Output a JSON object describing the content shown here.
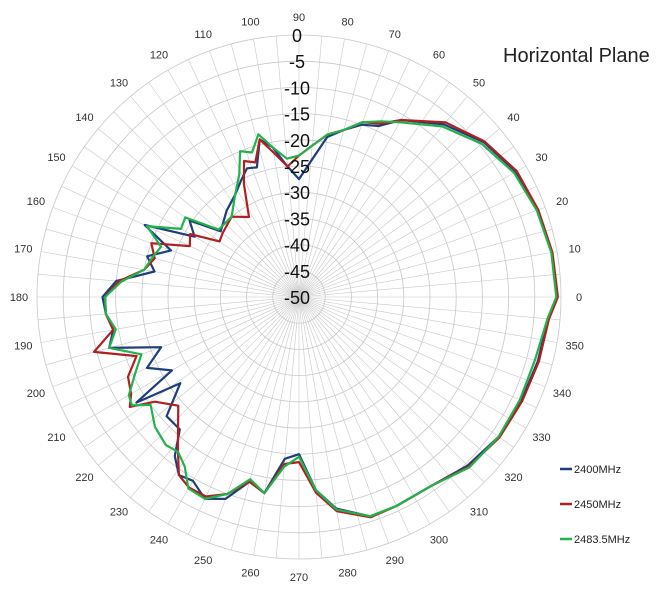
{
  "chart_data": {
    "type": "polar-line",
    "title": "Horizontal Plane",
    "angle_ticks": [
      "0",
      "10",
      "20",
      "30",
      "40",
      "50",
      "60",
      "70",
      "80",
      "90",
      "100",
      "110",
      "120",
      "130",
      "140",
      "150",
      "160",
      "170",
      "180",
      "190",
      "200",
      "210",
      "220",
      "230",
      "240",
      "250",
      "260",
      "270",
      "280",
      "290",
      "300",
      "310",
      "320",
      "330",
      "340",
      "350"
    ],
    "radial_ticks": [
      "0",
      "-5",
      "-10",
      "-15",
      "-20",
      "-25",
      "-30",
      "-35",
      "-40",
      "-45",
      "-50"
    ],
    "rlim": [
      -50,
      0
    ],
    "legend_position": "bottom-right",
    "grid": true,
    "series": [
      {
        "name": "2400MHz",
        "color": "#1f3f7a",
        "points": [
          [
            0,
            -0.8
          ],
          [
            10,
            -1
          ],
          [
            20,
            -1.5
          ],
          [
            30,
            -2.2
          ],
          [
            40,
            -4
          ],
          [
            50,
            -7
          ],
          [
            60,
            -11
          ],
          [
            65,
            -14
          ],
          [
            70,
            -15
          ],
          [
            75,
            -17
          ],
          [
            80,
            -19
          ],
          [
            85,
            -24
          ],
          [
            90,
            -27.5
          ],
          [
            95,
            -25
          ],
          [
            100,
            -21
          ],
          [
            104,
            -19
          ],
          [
            108,
            -24
          ],
          [
            112,
            -23.5
          ],
          [
            116,
            -25
          ],
          [
            122,
            -27
          ],
          [
            130,
            -28.5
          ],
          [
            140,
            -30.5
          ],
          [
            145,
            -24.5
          ],
          [
            150,
            -27
          ],
          [
            155,
            -17.5
          ],
          [
            160,
            -24
          ],
          [
            165,
            -20
          ],
          [
            170,
            -22
          ],
          [
            175,
            -15
          ],
          [
            180,
            -12.5
          ],
          [
            185,
            -13
          ],
          [
            190,
            -14
          ],
          [
            195,
            -12.5
          ],
          [
            200,
            -22
          ],
          [
            205,
            -18
          ],
          [
            210,
            -22
          ],
          [
            213,
            -13
          ],
          [
            216,
            -22
          ],
          [
            222,
            -16
          ],
          [
            228,
            -16
          ],
          [
            232,
            -11.5
          ],
          [
            236,
            -9
          ],
          [
            240,
            -9.5
          ],
          [
            245,
            -7.5
          ],
          [
            250,
            -9
          ],
          [
            255,
            -13.5
          ],
          [
            260,
            -12
          ],
          [
            265,
            -19
          ],
          [
            270,
            -20
          ],
          [
            275,
            -13
          ],
          [
            280,
            -9
          ],
          [
            288,
            -6
          ],
          [
            295,
            -6
          ],
          [
            305,
            -6
          ],
          [
            315,
            -4.5
          ],
          [
            325,
            -3.5
          ],
          [
            335,
            -3.2
          ],
          [
            345,
            -2.8
          ],
          [
            355,
            -2.3
          ],
          [
            360,
            -0.8
          ]
        ]
      },
      {
        "name": "2450MHz",
        "color": "#b21f1f",
        "points": [
          [
            0,
            -0.6
          ],
          [
            10,
            -0.9
          ],
          [
            20,
            -1.4
          ],
          [
            30,
            -2
          ],
          [
            40,
            -3.8
          ],
          [
            50,
            -6.5
          ],
          [
            60,
            -11
          ],
          [
            65,
            -13.5
          ],
          [
            70,
            -14.5
          ],
          [
            75,
            -17
          ],
          [
            80,
            -18.5
          ],
          [
            85,
            -21
          ],
          [
            90,
            -23
          ],
          [
            95,
            -25
          ],
          [
            100,
            -22
          ],
          [
            104,
            -19
          ],
          [
            108,
            -23
          ],
          [
            112,
            -22
          ],
          [
            116,
            -26
          ],
          [
            122,
            -32
          ],
          [
            130,
            -30
          ],
          [
            140,
            -31
          ],
          [
            145,
            -31.5
          ],
          [
            150,
            -26
          ],
          [
            155,
            -27
          ],
          [
            160,
            -20
          ],
          [
            165,
            -21.5
          ],
          [
            170,
            -20
          ],
          [
            175,
            -15.5
          ],
          [
            180,
            -13
          ],
          [
            185,
            -13
          ],
          [
            190,
            -14
          ],
          [
            195,
            -9.5
          ],
          [
            200,
            -17
          ],
          [
            205,
            -14
          ],
          [
            210,
            -13
          ],
          [
            213,
            -11.5
          ],
          [
            216,
            -16
          ],
          [
            222,
            -19
          ],
          [
            228,
            -15.5
          ],
          [
            232,
            -12.5
          ],
          [
            236,
            -9
          ],
          [
            240,
            -8
          ],
          [
            245,
            -8
          ],
          [
            250,
            -10
          ],
          [
            255,
            -13.5
          ],
          [
            260,
            -12
          ],
          [
            265,
            -18
          ],
          [
            270,
            -18.5
          ],
          [
            275,
            -12.5
          ],
          [
            280,
            -8.5
          ],
          [
            288,
            -5.8
          ],
          [
            295,
            -6
          ],
          [
            305,
            -6
          ],
          [
            315,
            -4.2
          ],
          [
            325,
            -3.3
          ],
          [
            335,
            -3
          ],
          [
            345,
            -2.6
          ],
          [
            355,
            -2.1
          ],
          [
            360,
            -0.6
          ]
        ]
      },
      {
        "name": "2483.5MHz",
        "color": "#22b24c",
        "points": [
          [
            0,
            -0.9
          ],
          [
            10,
            -1.1
          ],
          [
            20,
            -1.7
          ],
          [
            30,
            -2.6
          ],
          [
            40,
            -4.5
          ],
          [
            50,
            -7.5
          ],
          [
            60,
            -11.5
          ],
          [
            65,
            -13
          ],
          [
            70,
            -14.5
          ],
          [
            75,
            -17
          ],
          [
            80,
            -18.5
          ],
          [
            85,
            -21
          ],
          [
            90,
            -23
          ],
          [
            95,
            -23.5
          ],
          [
            100,
            -21
          ],
          [
            104,
            -18
          ],
          [
            108,
            -21
          ],
          [
            112,
            -20
          ],
          [
            116,
            -24
          ],
          [
            122,
            -27
          ],
          [
            130,
            -30
          ],
          [
            140,
            -30
          ],
          [
            145,
            -23.5
          ],
          [
            150,
            -24
          ],
          [
            155,
            -18
          ],
          [
            160,
            -22
          ],
          [
            165,
            -21
          ],
          [
            170,
            -20
          ],
          [
            175,
            -16
          ],
          [
            180,
            -13
          ],
          [
            185,
            -13
          ],
          [
            190,
            -14.5
          ],
          [
            195,
            -12.5
          ],
          [
            200,
            -18
          ],
          [
            205,
            -15.5
          ],
          [
            210,
            -12.5
          ],
          [
            213,
            -12
          ],
          [
            216,
            -15
          ],
          [
            222,
            -13
          ],
          [
            228,
            -12
          ],
          [
            232,
            -12.5
          ],
          [
            236,
            -11
          ],
          [
            240,
            -7.8
          ],
          [
            245,
            -7.5
          ],
          [
            250,
            -10
          ],
          [
            255,
            -14
          ],
          [
            260,
            -12
          ],
          [
            265,
            -17.5
          ],
          [
            270,
            -19.5
          ],
          [
            275,
            -13
          ],
          [
            280,
            -8.8
          ],
          [
            288,
            -6
          ],
          [
            295,
            -6
          ],
          [
            305,
            -6
          ],
          [
            315,
            -4
          ],
          [
            325,
            -3.5
          ],
          [
            335,
            -3.5
          ],
          [
            345,
            -3.4
          ],
          [
            355,
            -2.4
          ],
          [
            360,
            -0.9
          ]
        ]
      }
    ]
  }
}
